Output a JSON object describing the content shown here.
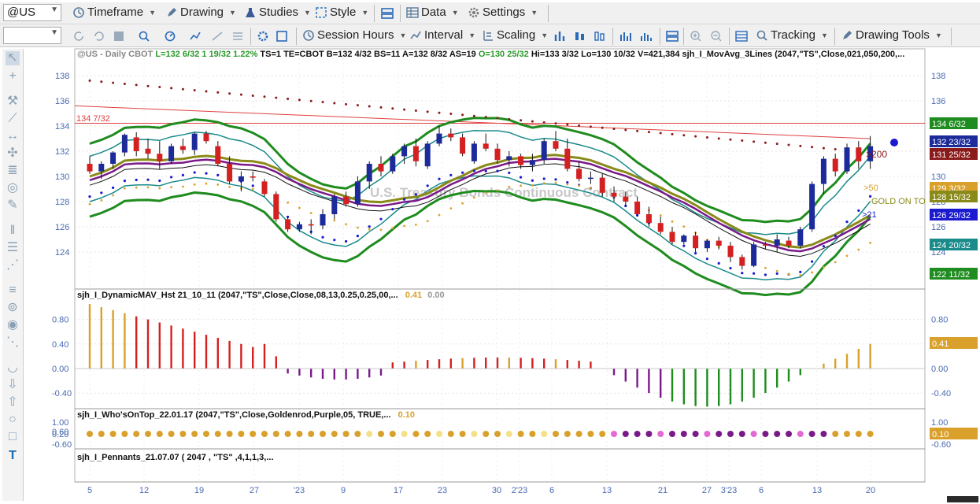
{
  "toolbar1": {
    "symbol": "@US",
    "timeframe": "Timeframe",
    "drawing": "Drawing",
    "studies": "Studies",
    "style": "Style",
    "data": "Data",
    "settings": "Settings"
  },
  "toolbar2": {
    "session_hours": "Session Hours",
    "interval": "Interval",
    "scaling": "Scaling",
    "tracking": "Tracking",
    "drawing_tools": "Drawing Tools"
  },
  "header": {
    "sym": "@US - Daily  CBOT",
    "last": "L=132 6/32",
    "chg": "1 19/32",
    "pct": "1.22%",
    "rest1": "TS=1  TE=CBOT  B=132 4/32  BS=11  A=132 8/32  AS=19",
    "open": "O=130 25/32",
    "rest2": "Hi=133 3/32  Lo=130 10/32  V=421,384  sjh_I_MovAvg_3Lines (2047,\"TS\",Close,021,050,200,..."
  },
  "watermark": "U.S. Treasury Bonds Continuous Contract",
  "labels": {
    "hline": "134 7/32",
    "ma200": ">200",
    "ma50": ">50",
    "gold": "GOLD ON TOP",
    "ma21": ">21"
  },
  "panels": {
    "p2_title": "sjh_I_DynamicMAV_Hst 21_10_11 (2047,\"TS\",Close,Close,08,13,0.25,0.25,00,...",
    "p2_val1": "0.41",
    "p2_val2": "0.00",
    "p3_title": "sjh_I_Who'sOnTop_22.01.17 (2047,\"TS\",Close,Goldenrod,Purple,05, TRUE,...",
    "p3_val": "0.10",
    "p4_title": "sjh_I_Pennants_21.07.07 ( 2047 , \"TS\" ,4,1,1,3,..."
  },
  "chart_data": {
    "type": "candlestick",
    "yticks_price": [
      "124",
      "126",
      "128",
      "130",
      "132",
      "134",
      "136",
      "138"
    ],
    "yticks_osc": [
      "-0.40",
      "0.00",
      "0.40",
      "0.80"
    ],
    "yticks_who": [
      "-0.60",
      "0.20",
      "0.60",
      "1.00"
    ],
    "xticks": [
      "5",
      "12",
      "19",
      "27",
      "'23",
      "9",
      "17",
      "23",
      "30",
      "2'23",
      "6",
      "13",
      "21",
      "27",
      "3'23",
      "6",
      "13",
      "20"
    ],
    "price_tags": [
      {
        "text": "134 6/32",
        "bg": "#1e8c1e"
      },
      {
        "text": "132 23/32",
        "bg": "#1c2a9a"
      },
      {
        "text": "131 25/32",
        "bg": "#8b1a1a"
      },
      {
        "text": "129 3/32",
        "bg": "#d9a12b"
      },
      {
        "text": "128 15/32",
        "bg": "#8a8a1a"
      },
      {
        "text": "126 29/32",
        "bg": "#1a1ad0"
      },
      {
        "text": "124 20/32",
        "bg": "#1a8a8a"
      },
      {
        "text": "122 11/32",
        "bg": "#1e8c1e"
      }
    ],
    "osc_tag": "0.41",
    "who_tag": "0.10",
    "candles": [
      [
        131.0,
        131.6,
        130.2,
        130.4
      ],
      [
        130.4,
        131.2,
        129.8,
        131.0
      ],
      [
        131.0,
        132.0,
        130.6,
        131.9
      ],
      [
        131.9,
        133.4,
        131.6,
        133.3
      ],
      [
        133.1,
        133.5,
        131.6,
        132.0
      ],
      [
        132.2,
        133.0,
        131.4,
        131.8
      ],
      [
        131.8,
        132.8,
        130.6,
        131.2
      ],
      [
        131.2,
        132.6,
        131.0,
        132.4
      ],
      [
        132.4,
        133.0,
        131.8,
        132.1
      ],
      [
        132.1,
        133.5,
        131.7,
        133.4
      ],
      [
        133.4,
        133.6,
        132.6,
        132.8
      ],
      [
        132.4,
        132.8,
        130.8,
        131.0
      ],
      [
        131.0,
        131.6,
        129.4,
        129.6
      ],
      [
        129.6,
        130.4,
        128.8,
        130.0
      ],
      [
        130.0,
        130.4,
        129.6,
        129.9
      ],
      [
        129.6,
        129.8,
        128.4,
        128.6
      ],
      [
        128.6,
        128.8,
        126.4,
        126.6
      ],
      [
        126.6,
        126.8,
        125.6,
        125.8
      ],
      [
        125.8,
        126.4,
        125.6,
        126.2
      ],
      [
        126.2,
        126.6,
        125.4,
        126.1
      ],
      [
        126.1,
        127.4,
        125.8,
        127.0
      ],
      [
        127.0,
        128.6,
        126.6,
        128.4
      ],
      [
        128.4,
        128.8,
        127.6,
        127.8
      ],
      [
        127.8,
        130.0,
        127.6,
        129.6
      ],
      [
        129.6,
        131.2,
        129.0,
        131.0
      ],
      [
        131.0,
        131.6,
        130.0,
        130.4
      ],
      [
        130.4,
        131.8,
        130.2,
        131.6
      ],
      [
        131.6,
        132.6,
        131.0,
        132.4
      ],
      [
        132.4,
        133.0,
        130.8,
        131.2
      ],
      [
        130.8,
        132.8,
        130.6,
        132.6
      ],
      [
        132.6,
        134.0,
        132.4,
        133.4
      ],
      [
        133.4,
        133.8,
        132.8,
        133.1
      ],
      [
        133.1,
        133.4,
        131.6,
        131.8
      ],
      [
        131.2,
        132.8,
        131.0,
        132.6
      ],
      [
        132.6,
        133.4,
        132.0,
        132.2
      ],
      [
        132.2,
        132.6,
        131.0,
        131.3
      ],
      [
        131.3,
        132.0,
        130.8,
        131.6
      ],
      [
        131.6,
        131.8,
        130.6,
        130.9
      ],
      [
        130.9,
        131.8,
        130.4,
        131.3
      ],
      [
        131.3,
        133.0,
        131.0,
        132.8
      ],
      [
        132.8,
        133.6,
        132.0,
        132.2
      ],
      [
        132.2,
        133.0,
        130.4,
        130.6
      ],
      [
        130.6,
        131.2,
        129.6,
        129.8
      ],
      [
        129.8,
        130.4,
        129.4,
        129.9
      ],
      [
        129.9,
        130.2,
        128.4,
        128.7
      ],
      [
        128.7,
        129.2,
        128.0,
        128.4
      ],
      [
        128.4,
        128.8,
        127.6,
        128.0
      ],
      [
        128.0,
        128.4,
        126.8,
        127.0
      ],
      [
        127.0,
        127.6,
        126.0,
        126.3
      ],
      [
        126.3,
        126.8,
        125.4,
        125.6
      ],
      [
        125.6,
        126.0,
        124.6,
        124.8
      ],
      [
        124.8,
        125.4,
        124.6,
        125.3
      ],
      [
        125.3,
        125.6,
        124.0,
        124.3
      ],
      [
        124.3,
        125.0,
        124.0,
        124.9
      ],
      [
        124.9,
        125.2,
        124.2,
        124.5
      ],
      [
        124.5,
        124.8,
        123.2,
        123.6
      ],
      [
        123.6,
        123.8,
        122.6,
        122.9
      ],
      [
        122.9,
        124.8,
        122.8,
        124.6
      ],
      [
        124.6,
        124.8,
        124.2,
        124.5
      ],
      [
        124.5,
        125.4,
        124.0,
        125.0
      ],
      [
        124.9,
        125.2,
        124.3,
        124.5
      ],
      [
        124.5,
        126.0,
        124.3,
        125.8
      ],
      [
        125.8,
        129.6,
        125.6,
        129.4
      ],
      [
        129.4,
        131.6,
        128.6,
        131.4
      ],
      [
        131.4,
        131.8,
        130.0,
        130.4
      ],
      [
        130.4,
        132.6,
        130.2,
        132.3
      ],
      [
        132.3,
        132.8,
        130.6,
        131.2
      ],
      [
        131.2,
        133.2,
        130.6,
        132.4
      ]
    ]
  }
}
